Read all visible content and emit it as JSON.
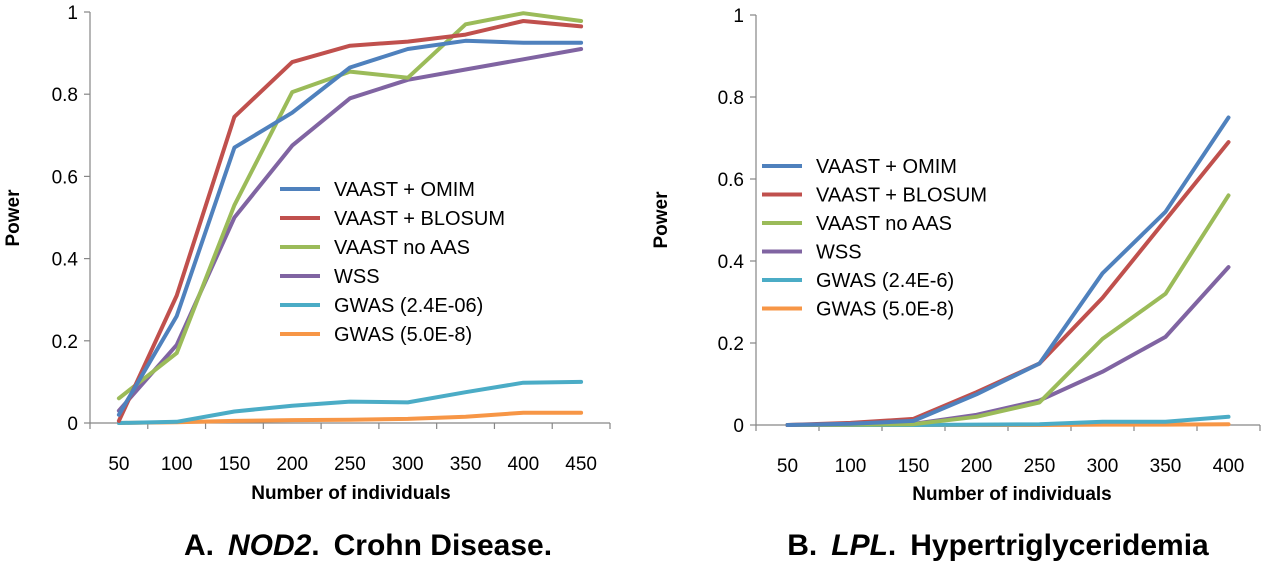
{
  "chart_data": [
    {
      "type": "line",
      "panel": "A",
      "caption_prefix": "A.",
      "caption_gene": "NOD2",
      "caption_suffix": "Crohn Disease.",
      "xlabel": "Number of individuals",
      "ylabel": "Power",
      "ylim": [
        0,
        1
      ],
      "yticks": [
        "0",
        "0.2",
        "0.4",
        "0.6",
        "0.8",
        "1"
      ],
      "categories": [
        "50",
        "100",
        "150",
        "200",
        "250",
        "300",
        "350",
        "400",
        "450"
      ],
      "legend_position": "center-right",
      "series": [
        {
          "name": "VAAST + OMIM",
          "color": "#4F81BD",
          "values": [
            0.02,
            0.26,
            0.67,
            0.755,
            0.865,
            0.91,
            0.93,
            0.925,
            0.925
          ]
        },
        {
          "name": "VAAST + BLOSUM",
          "color": "#C0504D",
          "values": [
            0.005,
            0.31,
            0.745,
            0.878,
            0.918,
            0.928,
            0.945,
            0.978,
            0.965
          ]
        },
        {
          "name": "VAAST no AAS",
          "color": "#9BBB59",
          "values": [
            0.06,
            0.17,
            0.53,
            0.805,
            0.855,
            0.84,
            0.97,
            0.997,
            0.978
          ]
        },
        {
          "name": "WSS",
          "color": "#8064A2",
          "values": [
            0.03,
            0.19,
            0.5,
            0.675,
            0.79,
            0.835,
            0.86,
            0.885,
            0.91
          ]
        },
        {
          "name": "GWAS (2.4E-06)",
          "color": "#4BACC6",
          "values": [
            0.0,
            0.003,
            0.028,
            0.042,
            0.052,
            0.05,
            0.075,
            0.098,
            0.1
          ]
        },
        {
          "name": "GWAS (5.0E-8)",
          "color": "#F79646",
          "values": [
            0.0,
            0.002,
            0.005,
            0.007,
            0.008,
            0.01,
            0.015,
            0.025,
            0.025
          ]
        }
      ]
    },
    {
      "type": "line",
      "panel": "B",
      "caption_prefix": "B.",
      "caption_gene": "LPL",
      "caption_suffix": "Hypertriglyceridemia",
      "xlabel": "Number of individuals",
      "ylabel": "Power",
      "ylim": [
        0,
        1
      ],
      "yticks": [
        "0",
        "0.2",
        "0.4",
        "0.6",
        "0.8",
        "1"
      ],
      "categories": [
        "50",
        "100",
        "150",
        "200",
        "250",
        "300",
        "350",
        "400"
      ],
      "legend_position": "center-left",
      "series": [
        {
          "name": "VAAST + OMIM",
          "color": "#4F81BD",
          "values": [
            0.0,
            0.003,
            0.01,
            0.075,
            0.15,
            0.37,
            0.52,
            0.75
          ]
        },
        {
          "name": "VAAST + BLOSUM",
          "color": "#C0504D",
          "values": [
            0.0,
            0.005,
            0.015,
            0.08,
            0.15,
            0.31,
            0.5,
            0.69
          ]
        },
        {
          "name": "VAAST no AAS",
          "color": "#9BBB59",
          "values": [
            0.0,
            0.001,
            0.002,
            0.02,
            0.055,
            0.21,
            0.32,
            0.56
          ]
        },
        {
          "name": "WSS",
          "color": "#8064A2",
          "values": [
            0.0,
            0.001,
            0.003,
            0.025,
            0.06,
            0.13,
            0.215,
            0.385
          ]
        },
        {
          "name": "GWAS (2.4E-6)",
          "color": "#4BACC6",
          "values": [
            0.0,
            0.0,
            0.0,
            0.001,
            0.002,
            0.008,
            0.008,
            0.02
          ]
        },
        {
          "name": "GWAS (5.0E-8)",
          "color": "#F79646",
          "values": [
            0.0,
            0.0,
            0.0,
            0.0,
            0.0,
            0.001,
            0.001,
            0.002
          ]
        }
      ]
    }
  ]
}
